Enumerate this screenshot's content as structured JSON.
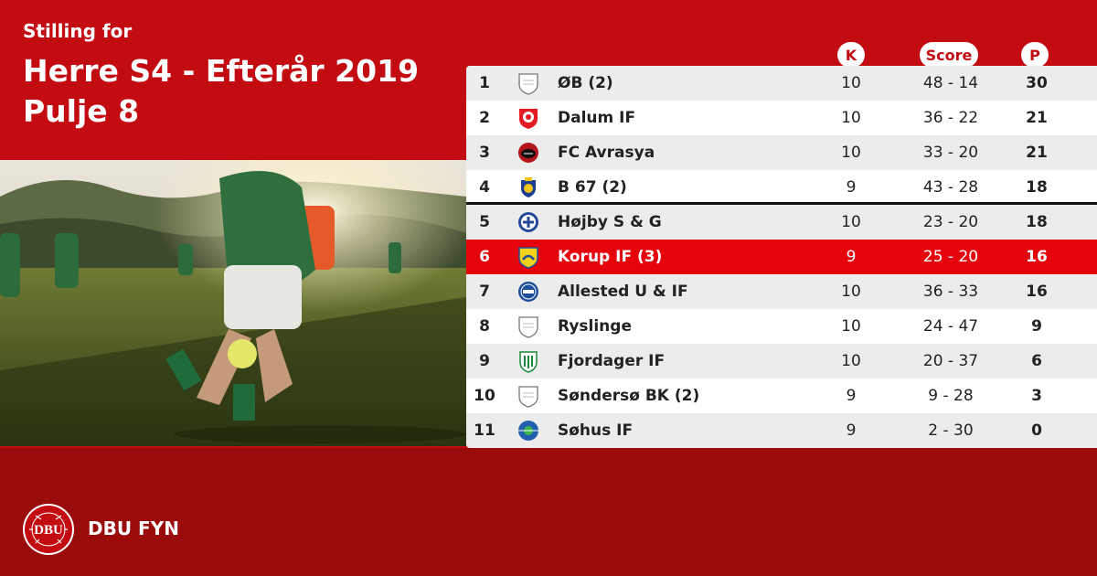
{
  "header": {
    "subtitle": "Stilling for",
    "title_line1": "Herre S4 - Efterår 2019",
    "title_line2": "Pulje 8"
  },
  "columns": {
    "k": "K",
    "score": "Score",
    "p": "P"
  },
  "colors": {
    "brand_red": "#c30b12",
    "highlight_red": "#e6040c",
    "dark_red": "#9a0c0c"
  },
  "standings": [
    {
      "pos": "1",
      "team": "ØB (2)",
      "k": "10",
      "score": "48 - 14",
      "p": "30",
      "logo": "generic-shield-icon"
    },
    {
      "pos": "2",
      "team": "Dalum IF",
      "k": "10",
      "score": "36 - 22",
      "p": "21",
      "logo": "dalum-crest-icon"
    },
    {
      "pos": "3",
      "team": "FC Avrasya",
      "k": "10",
      "score": "33 - 20",
      "p": "21",
      "logo": "avrasya-crest-icon"
    },
    {
      "pos": "4",
      "team": "B 67 (2)",
      "k": "9",
      "score": "43 - 28",
      "p": "18",
      "logo": "b67-crest-icon"
    },
    {
      "pos": "5",
      "team": "Højby S & G",
      "k": "10",
      "score": "23 - 20",
      "p": "18",
      "logo": "hojby-crest-icon"
    },
    {
      "pos": "6",
      "team": "Korup IF (3)",
      "k": "9",
      "score": "25 - 20",
      "p": "16",
      "logo": "korup-crest-icon"
    },
    {
      "pos": "7",
      "team": "Allested U & IF",
      "k": "10",
      "score": "36 - 33",
      "p": "16",
      "logo": "allested-crest-icon"
    },
    {
      "pos": "8",
      "team": "Ryslinge",
      "k": "10",
      "score": "24 - 47",
      "p": "9",
      "logo": "generic-shield-icon"
    },
    {
      "pos": "9",
      "team": "Fjordager IF",
      "k": "10",
      "score": "20 - 37",
      "p": "6",
      "logo": "fjordager-crest-icon"
    },
    {
      "pos": "10",
      "team": "Søndersø BK (2)",
      "k": "9",
      "score": "9 - 28",
      "p": "3",
      "logo": "generic-shield-icon"
    },
    {
      "pos": "11",
      "team": "Søhus IF",
      "k": "9",
      "score": "2 - 30",
      "p": "0",
      "logo": "sohus-crest-icon"
    }
  ],
  "footer": {
    "org_name": "DBU FYN",
    "logo_letters": "DBU",
    "logo_ring_text": "DANSK BOLDSPIL-UNION 1889"
  }
}
